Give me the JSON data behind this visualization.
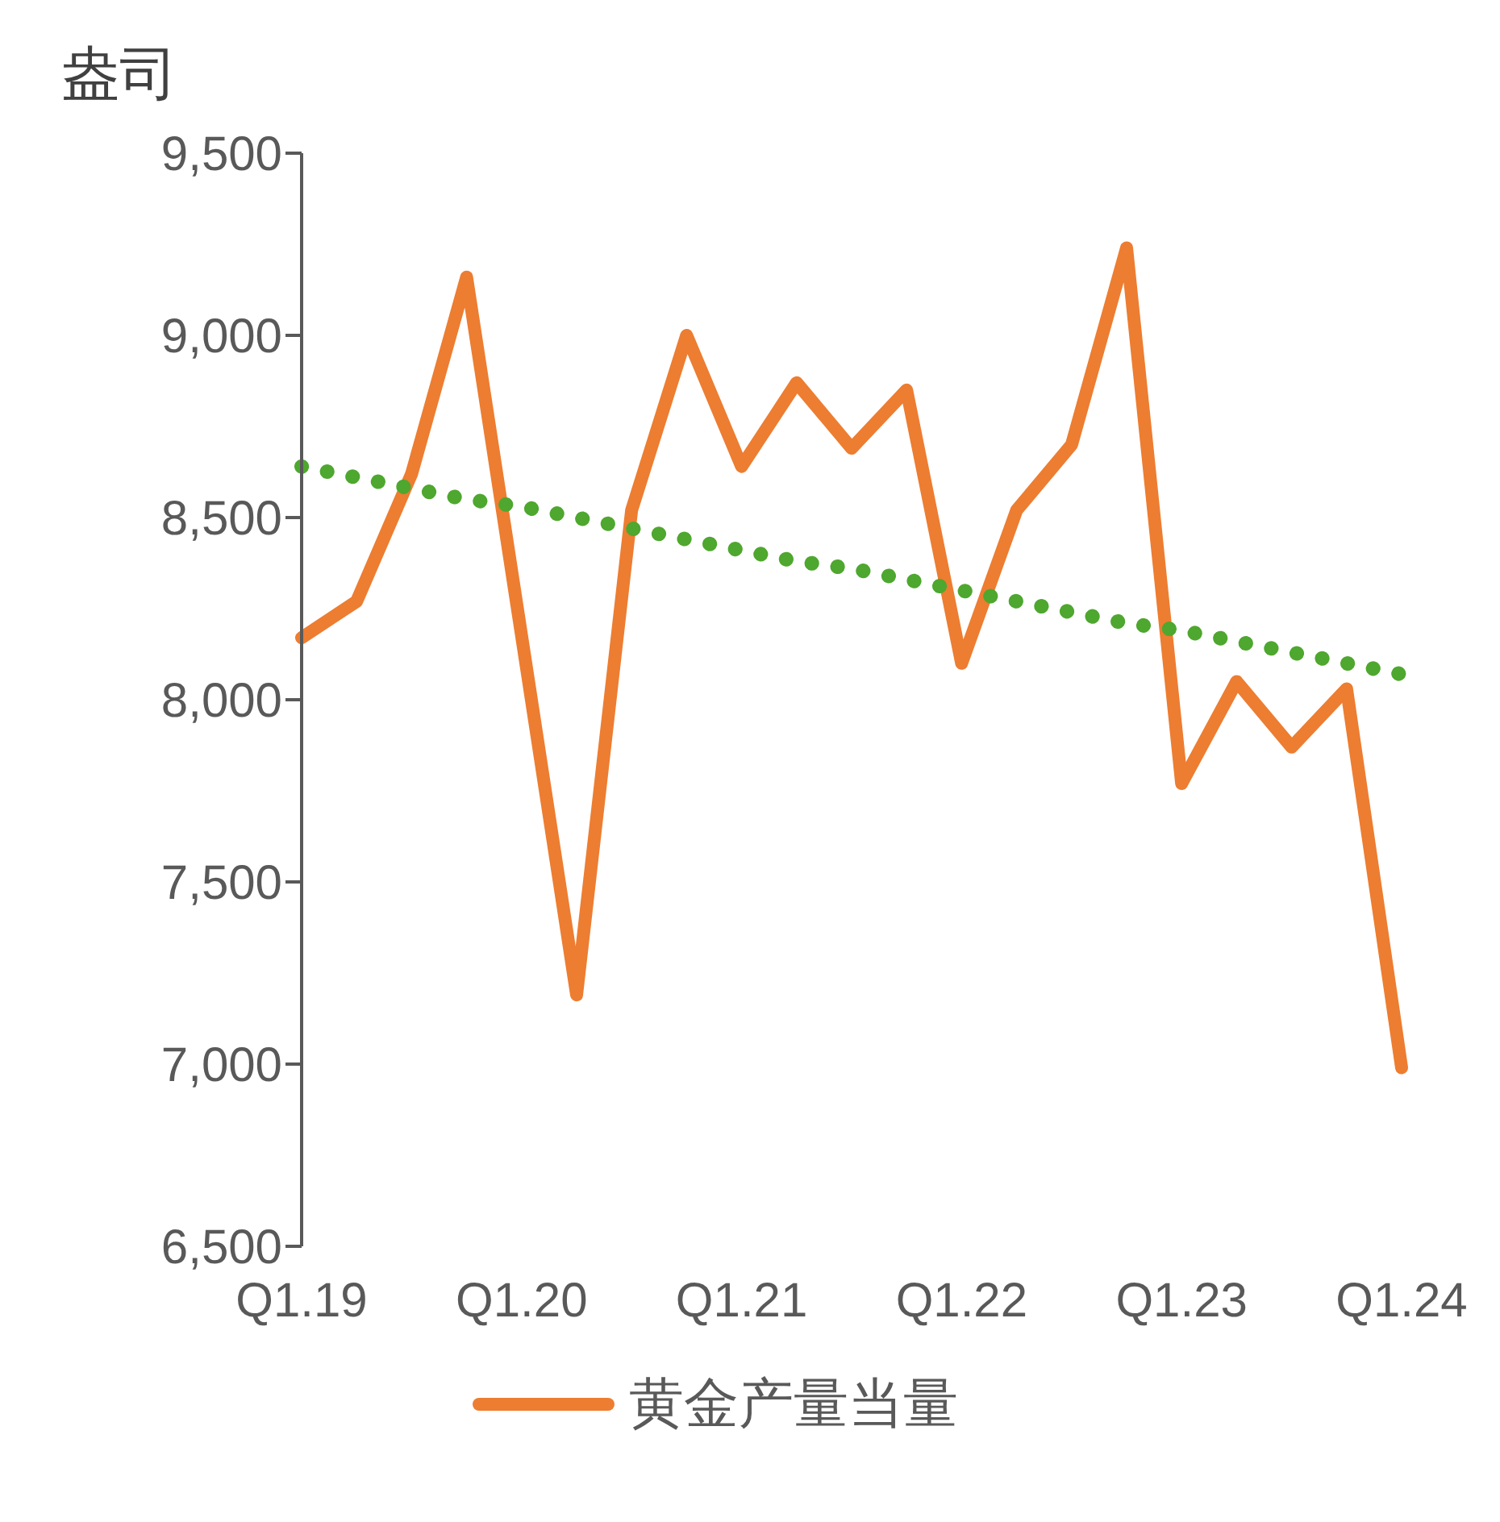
{
  "chart_data": {
    "type": "line",
    "ylabel": "盎司",
    "categories": [
      "Q1.19",
      null,
      null,
      null,
      "Q1.20",
      null,
      null,
      null,
      "Q1.21",
      null,
      null,
      null,
      "Q1.22",
      null,
      null,
      null,
      "Q1.23",
      null,
      null,
      null,
      "Q1.24"
    ],
    "series": [
      {
        "name": "黄金产量当量",
        "color": "#ed7d31",
        "values": [
          8170,
          8270,
          8620,
          9160,
          8175,
          7190,
          8520,
          9000,
          8640,
          8870,
          8690,
          8850,
          8100,
          8520,
          8700,
          9240,
          7770,
          8050,
          7870,
          8030,
          6990
        ]
      },
      {
        "color": "#4ea72e",
        "line_style": "dotted",
        "values": [
          8640,
          8610,
          8580,
          8550,
          8530,
          8500,
          8470,
          8440,
          8410,
          8380,
          8360,
          8330,
          8300,
          8270,
          8240,
          8210,
          8190,
          8160,
          8130,
          8100,
          8070
        ]
      }
    ],
    "ylim": [
      6500,
      9500
    ],
    "yticks": [
      {
        "value": 6500,
        "label": "6,500"
      },
      {
        "value": 7000,
        "label": "7,000"
      },
      {
        "value": 7500,
        "label": "7,500"
      },
      {
        "value": 8000,
        "label": "8,000"
      },
      {
        "value": 8500,
        "label": "8,500"
      },
      {
        "value": 9000,
        "label": "9,000"
      },
      {
        "value": 9500,
        "label": "9,500"
      }
    ],
    "grid": false,
    "legend": "bottom",
    "marker": "none",
    "line_style": "solid"
  }
}
